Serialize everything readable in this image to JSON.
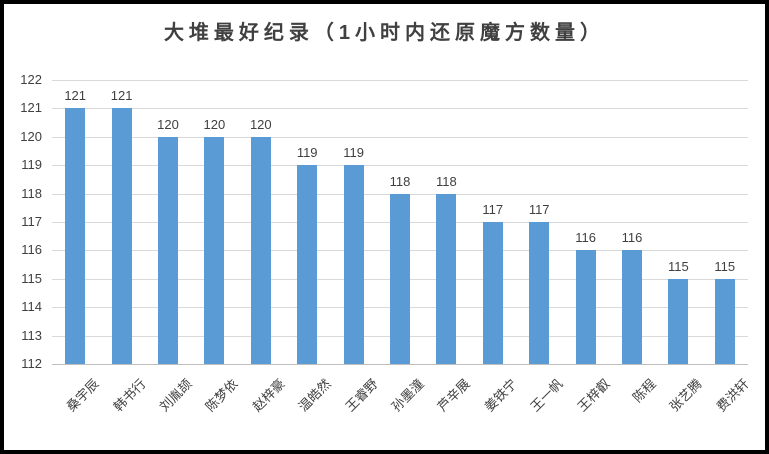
{
  "chart_data": {
    "type": "bar",
    "title": "大堆最好纪录（1小时内还原魔方数量）",
    "categories": [
      "桑宇辰",
      "韩书行",
      "刘胤颉",
      "陈梦依",
      "赵梓豪",
      "温皓然",
      "王睿野",
      "孙墨潼",
      "芦辛展",
      "姜铁宁",
      "王一帆",
      "王梓叡",
      "陈程",
      "张艺腾",
      "费洪轩"
    ],
    "values": [
      121,
      121,
      120,
      120,
      120,
      119,
      119,
      118,
      118,
      117,
      117,
      116,
      116,
      115,
      115
    ],
    "xlabel": "",
    "ylabel": "",
    "ylim": [
      112,
      122
    ],
    "ytick_interval": 1,
    "grid": true,
    "legend": "none",
    "data_labels": true,
    "category_label_rotation": 45,
    "colors": {
      "bar": "#5B9BD5",
      "gridline": "#D9D9D9",
      "axis_line": "#BFBFBF",
      "text": "#404040",
      "title": "#404040",
      "frame_border": "#000000",
      "background": "#FFFFFF"
    }
  }
}
